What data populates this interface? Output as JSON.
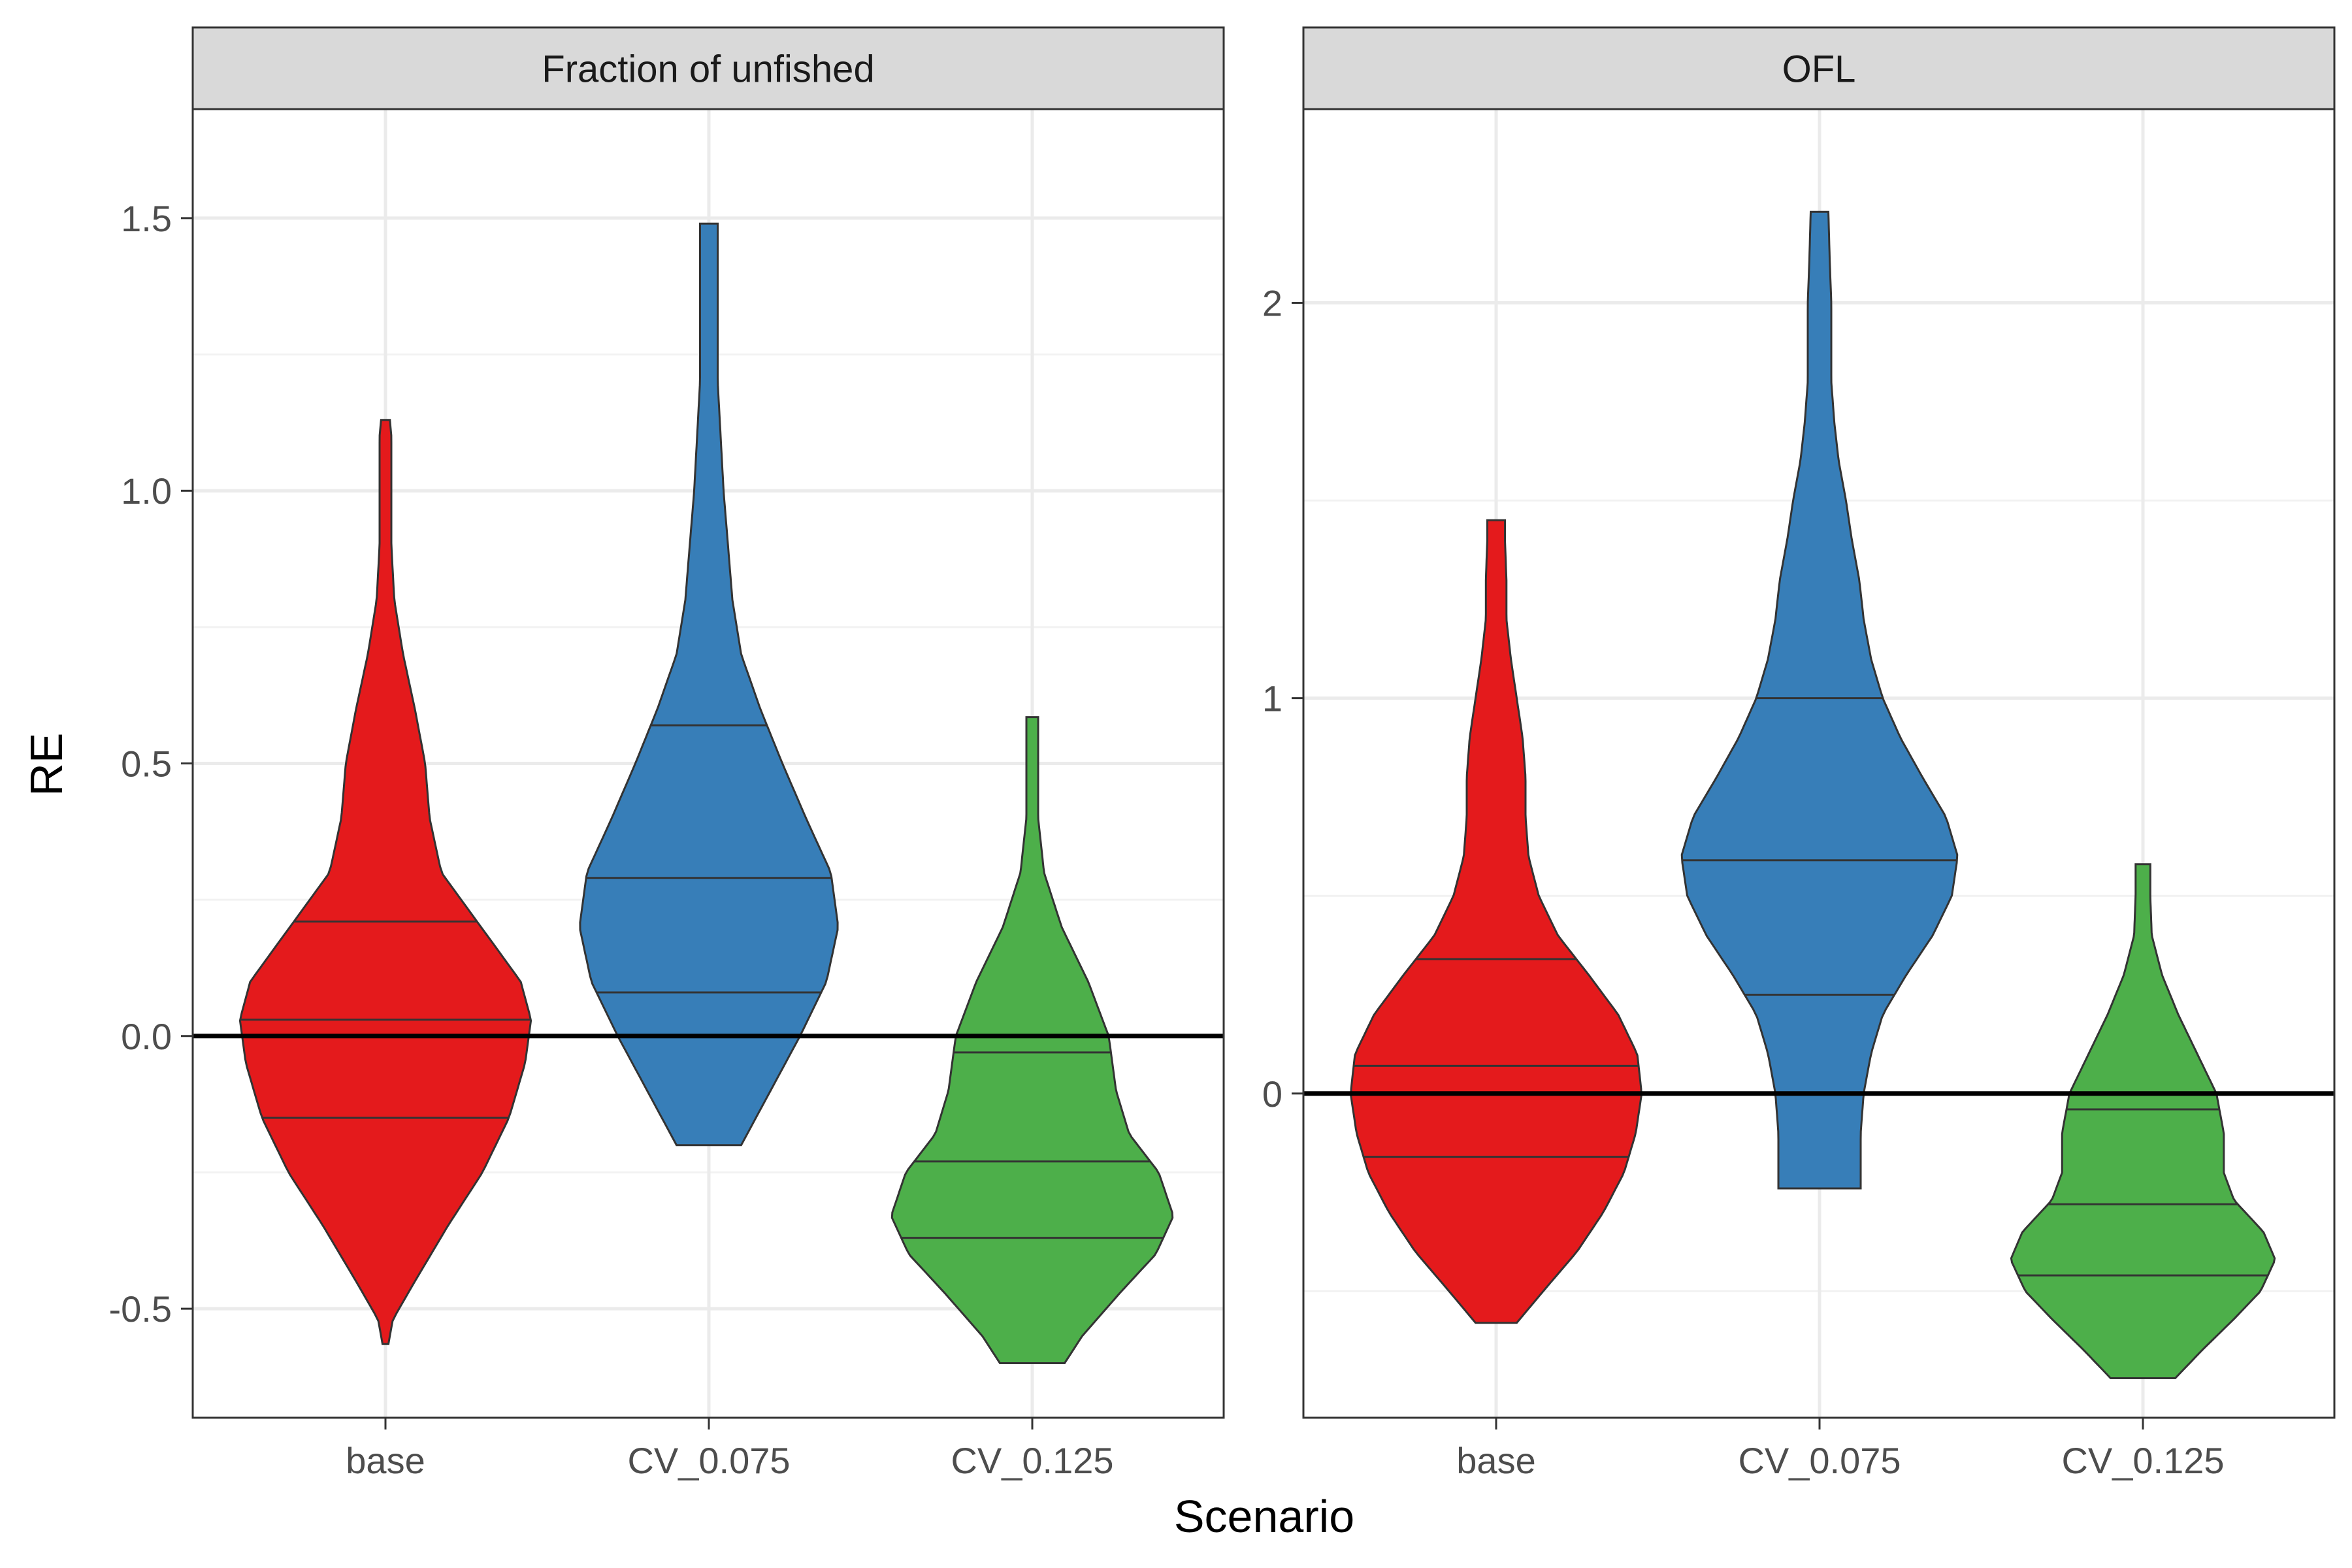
{
  "chart_data": {
    "type": "violin",
    "xlabel": "Scenario",
    "ylabel": "RE",
    "categories": [
      "base",
      "CV_0.075",
      "CV_0.125"
    ],
    "colors": [
      "#E41A1C",
      "#377EB8",
      "#4DAF4A"
    ],
    "reference_line": 0,
    "grid": true,
    "legend": "none",
    "panels": [
      {
        "title": "Fraction of unfished",
        "ylim": [
          -0.7,
          1.7
        ],
        "ticks": [
          -0.5,
          0,
          0.5,
          1,
          1.5
        ],
        "tick_labels": [
          "-0.5",
          "0.0",
          "0.5",
          "1.0",
          "1.5"
        ],
        "violins": [
          {
            "category": "base",
            "min": -0.565,
            "max": 1.13,
            "quantiles": [
              -0.15,
              0.03,
              0.21
            ],
            "profile": [
              [
                -0.565,
                0.02
              ],
              [
                -0.52,
                0.05
              ],
              [
                -0.45,
                0.2
              ],
              [
                -0.35,
                0.42
              ],
              [
                -0.25,
                0.66
              ],
              [
                -0.15,
                0.84
              ],
              [
                -0.05,
                0.95
              ],
              [
                0.03,
                0.99
              ],
              [
                0.1,
                0.92
              ],
              [
                0.2,
                0.65
              ],
              [
                0.3,
                0.38
              ],
              [
                0.4,
                0.3
              ],
              [
                0.5,
                0.27
              ],
              [
                0.6,
                0.2
              ],
              [
                0.7,
                0.12
              ],
              [
                0.8,
                0.06
              ],
              [
                0.9,
                0.04
              ],
              [
                1.0,
                0.04
              ],
              [
                1.1,
                0.04
              ],
              [
                1.13,
                0.03
              ]
            ]
          },
          {
            "category": "CV_0.075",
            "min": -0.2,
            "max": 1.49,
            "quantiles": [
              0.08,
              0.29,
              0.57
            ],
            "profile": [
              [
                -0.2,
                0.22
              ],
              [
                -0.1,
                0.42
              ],
              [
                0.0,
                0.62
              ],
              [
                0.1,
                0.8
              ],
              [
                0.2,
                0.88
              ],
              [
                0.3,
                0.83
              ],
              [
                0.4,
                0.66
              ],
              [
                0.5,
                0.5
              ],
              [
                0.6,
                0.35
              ],
              [
                0.7,
                0.22
              ],
              [
                0.8,
                0.16
              ],
              [
                0.9,
                0.13
              ],
              [
                1.0,
                0.1
              ],
              [
                1.1,
                0.08
              ],
              [
                1.2,
                0.06
              ],
              [
                1.3,
                0.06
              ],
              [
                1.4,
                0.06
              ],
              [
                1.49,
                0.06
              ]
            ]
          },
          {
            "category": "CV_0.125",
            "min": -0.6,
            "max": 0.585,
            "quantiles": [
              -0.37,
              -0.23,
              -0.03
            ],
            "profile": [
              [
                -0.6,
                0.22
              ],
              [
                -0.55,
                0.34
              ],
              [
                -0.47,
                0.6
              ],
              [
                -0.4,
                0.84
              ],
              [
                -0.33,
                0.96
              ],
              [
                -0.25,
                0.86
              ],
              [
                -0.18,
                0.66
              ],
              [
                -0.1,
                0.57
              ],
              [
                0.0,
                0.52
              ],
              [
                0.1,
                0.38
              ],
              [
                0.2,
                0.2
              ],
              [
                0.3,
                0.08
              ],
              [
                0.4,
                0.04
              ],
              [
                0.5,
                0.04
              ],
              [
                0.585,
                0.04
              ]
            ]
          }
        ]
      },
      {
        "title": "OFL",
        "ylim": [
          -0.82,
          2.49
        ],
        "ticks": [
          0,
          1,
          2
        ],
        "tick_labels": [
          "0",
          "1",
          "2"
        ],
        "violins": [
          {
            "category": "base",
            "min": -0.58,
            "max": 1.45,
            "quantiles": [
              -0.16,
              0.07,
              0.34
            ],
            "profile": [
              [
                -0.58,
                0.14
              ],
              [
                -0.5,
                0.32
              ],
              [
                -0.4,
                0.55
              ],
              [
                -0.3,
                0.73
              ],
              [
                -0.2,
                0.87
              ],
              [
                -0.1,
                0.95
              ],
              [
                0.0,
                0.99
              ],
              [
                0.1,
                0.96
              ],
              [
                0.2,
                0.83
              ],
              [
                0.3,
                0.63
              ],
              [
                0.4,
                0.42
              ],
              [
                0.5,
                0.29
              ],
              [
                0.6,
                0.22
              ],
              [
                0.7,
                0.2
              ],
              [
                0.8,
                0.2
              ],
              [
                0.9,
                0.18
              ],
              [
                1.0,
                0.14
              ],
              [
                1.1,
                0.1
              ],
              [
                1.2,
                0.07
              ],
              [
                1.3,
                0.07
              ],
              [
                1.4,
                0.06
              ],
              [
                1.45,
                0.06
              ]
            ]
          },
          {
            "category": "CV_0.075",
            "min": -0.24,
            "max": 2.23,
            "quantiles": [
              0.25,
              0.59,
              1.0
            ],
            "profile": [
              [
                -0.24,
                0.28
              ],
              [
                -0.1,
                0.28
              ],
              [
                0.0,
                0.3
              ],
              [
                0.1,
                0.35
              ],
              [
                0.2,
                0.43
              ],
              [
                0.3,
                0.59
              ],
              [
                0.4,
                0.77
              ],
              [
                0.5,
                0.9
              ],
              [
                0.6,
                0.94
              ],
              [
                0.7,
                0.86
              ],
              [
                0.8,
                0.7
              ],
              [
                0.9,
                0.55
              ],
              [
                1.0,
                0.43
              ],
              [
                1.1,
                0.35
              ],
              [
                1.2,
                0.3
              ],
              [
                1.3,
                0.27
              ],
              [
                1.4,
                0.22
              ],
              [
                1.5,
                0.18
              ],
              [
                1.6,
                0.13
              ],
              [
                1.7,
                0.1
              ],
              [
                1.8,
                0.08
              ],
              [
                1.9,
                0.08
              ],
              [
                2.0,
                0.08
              ],
              [
                2.1,
                0.07
              ],
              [
                2.23,
                0.06
              ]
            ]
          },
          {
            "category": "CV_0.125",
            "min": -0.72,
            "max": 0.58,
            "quantiles": [
              -0.46,
              -0.28,
              -0.04
            ],
            "profile": [
              [
                -0.72,
                0.22
              ],
              [
                -0.65,
                0.4
              ],
              [
                -0.57,
                0.62
              ],
              [
                -0.5,
                0.8
              ],
              [
                -0.42,
                0.9
              ],
              [
                -0.35,
                0.82
              ],
              [
                -0.27,
                0.62
              ],
              [
                -0.2,
                0.55
              ],
              [
                -0.1,
                0.55
              ],
              [
                0.0,
                0.5
              ],
              [
                0.1,
                0.37
              ],
              [
                0.2,
                0.24
              ],
              [
                0.3,
                0.13
              ],
              [
                0.4,
                0.06
              ],
              [
                0.5,
                0.05
              ],
              [
                0.58,
                0.05
              ]
            ]
          }
        ]
      }
    ]
  }
}
